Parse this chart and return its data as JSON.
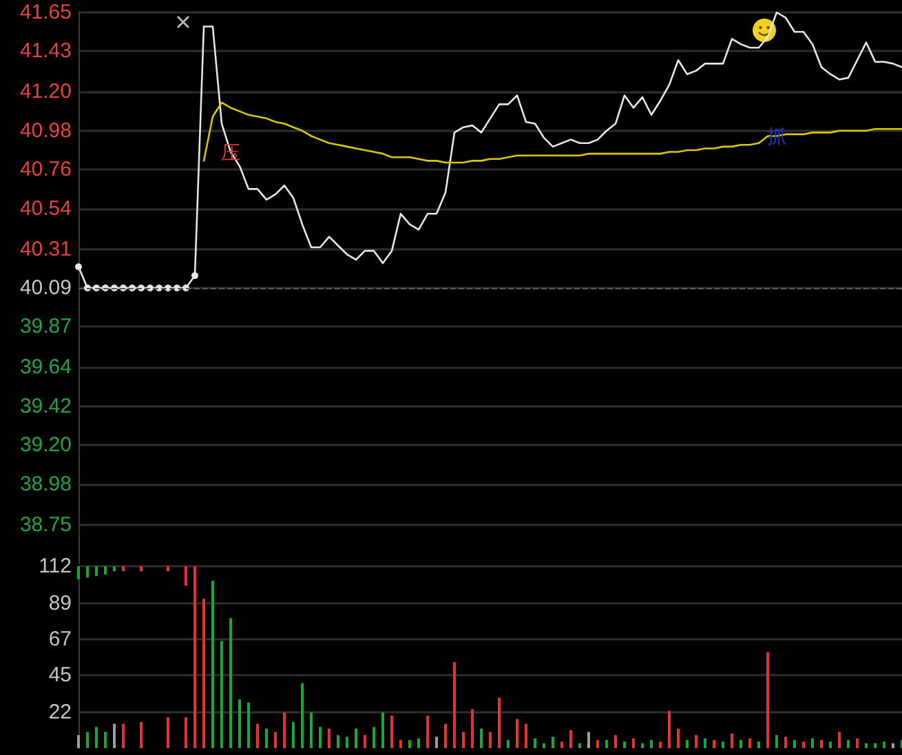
{
  "chart_data": [
    {
      "type": "line",
      "categories": [
        null,
        null,
        null,
        null,
        null,
        null,
        null,
        null,
        null,
        null,
        null,
        null,
        null,
        null,
        null,
        null,
        null,
        null,
        null,
        null,
        null,
        null,
        null,
        null,
        null,
        null,
        null,
        null,
        null,
        null,
        null,
        null,
        null,
        null,
        null,
        null,
        null,
        null,
        null,
        null,
        null,
        null,
        null,
        null,
        null,
        null,
        null,
        null,
        null,
        null,
        null,
        null,
        null,
        null,
        null,
        null,
        null,
        null,
        null,
        null,
        null,
        null,
        null,
        null,
        null,
        null,
        null,
        null,
        null,
        null,
        null,
        null,
        null,
        null,
        null,
        null,
        null,
        null,
        null,
        null,
        null,
        null,
        null,
        null,
        null,
        null,
        null,
        null,
        null,
        null,
        null,
        null,
        null
      ],
      "series": [
        {
          "color": "#e6e6e6",
          "marker": "circle",
          "values": [
            40.21,
            40.09,
            40.09,
            40.09,
            40.09,
            40.09,
            40.09,
            40.09,
            40.09,
            40.09,
            40.09,
            40.09,
            40.09,
            40.16,
            null,
            null,
            null,
            null,
            null,
            null,
            null,
            null,
            null,
            null,
            null,
            null,
            null,
            null,
            null,
            null,
            null,
            null,
            null,
            null,
            null,
            null,
            null,
            null,
            null,
            null,
            null,
            null,
            null,
            null,
            null,
            null,
            null,
            null,
            null,
            null,
            null,
            null,
            null,
            null,
            null,
            null,
            null,
            null,
            null,
            null,
            null,
            null,
            null,
            null,
            null,
            null,
            null,
            null,
            null,
            null,
            null,
            null,
            null,
            null,
            null,
            null,
            null,
            null,
            null,
            null,
            null,
            null,
            null,
            null,
            null,
            null,
            null,
            null,
            null,
            null,
            null,
            null,
            null
          ]
        },
        {
          "color": "#e6e6e6",
          "values": [
            null,
            null,
            null,
            null,
            null,
            null,
            null,
            null,
            null,
            null,
            null,
            null,
            null,
            40.16,
            41.57,
            41.57,
            41.02,
            40.86,
            40.78,
            40.65,
            40.65,
            40.59,
            40.62,
            40.67,
            40.6,
            40.45,
            40.32,
            40.32,
            40.38,
            40.33,
            40.28,
            40.25,
            40.3,
            40.3,
            40.23,
            40.3,
            40.51,
            40.45,
            40.42,
            40.51,
            40.51,
            40.63,
            40.97,
            41.0,
            41.01,
            40.97,
            41.05,
            41.13,
            41.13,
            41.18,
            41.03,
            41.02,
            40.94,
            40.89,
            40.91,
            40.93,
            40.91,
            40.91,
            40.93,
            40.98,
            41.02,
            41.18,
            41.11,
            41.17,
            41.07,
            41.15,
            41.24,
            41.38,
            41.3,
            41.32,
            41.36,
            41.36,
            41.36,
            41.5,
            41.47,
            41.45,
            41.45,
            41.51,
            41.65,
            41.62,
            41.54,
            41.54,
            41.47,
            41.34,
            41.3,
            41.27,
            41.28,
            41.38,
            41.48,
            41.37,
            41.37,
            41.36,
            41.34
          ],
          "value_labels": [
            null,
            null,
            null,
            null,
            null,
            null,
            null,
            null,
            null,
            null,
            null,
            null,
            null,
            null,
            null,
            null,
            null,
            "压",
            null,
            null,
            null,
            null,
            null,
            null,
            null,
            null,
            null,
            null,
            null,
            null,
            null,
            null,
            null,
            null,
            null,
            null,
            null,
            null,
            null,
            null,
            null,
            null,
            null,
            null,
            null,
            null,
            null,
            null,
            null,
            null,
            null,
            null,
            null,
            null,
            null,
            null,
            null,
            null,
            null,
            null,
            null,
            null,
            null,
            null,
            null,
            null,
            null,
            null,
            null,
            null,
            null,
            null,
            null,
            null,
            null,
            null,
            null,
            null,
            null,
            null,
            null,
            null,
            null,
            null,
            null,
            null,
            null,
            null,
            null,
            null,
            null,
            null,
            null
          ]
        },
        {
          "color": "#d9c800",
          "values": [
            null,
            null,
            null,
            null,
            null,
            null,
            null,
            null,
            null,
            null,
            null,
            null,
            null,
            null,
            40.81,
            41.06,
            41.14,
            41.11,
            41.09,
            41.07,
            41.06,
            41.05,
            41.03,
            41.02,
            41.0,
            40.98,
            40.95,
            40.93,
            40.91,
            40.9,
            40.89,
            40.88,
            40.87,
            40.86,
            40.85,
            40.83,
            40.83,
            40.83,
            40.82,
            40.81,
            40.81,
            40.8,
            40.8,
            40.8,
            40.81,
            40.81,
            40.82,
            40.82,
            40.83,
            40.84,
            40.84,
            40.84,
            40.84,
            40.84,
            40.84,
            40.84,
            40.84,
            40.85,
            40.85,
            40.85,
            40.85,
            40.85,
            40.85,
            40.85,
            40.85,
            40.85,
            40.86,
            40.86,
            40.87,
            40.87,
            40.88,
            40.88,
            40.89,
            40.89,
            40.9,
            40.9,
            40.91,
            40.95,
            40.95,
            40.96,
            40.96,
            40.96,
            40.97,
            40.97,
            40.97,
            40.98,
            40.98,
            40.98,
            40.98,
            40.99,
            40.99,
            40.99,
            40.99
          ],
          "value_labels": [
            null,
            null,
            null,
            null,
            null,
            null,
            null,
            null,
            null,
            null,
            null,
            null,
            null,
            null,
            null,
            null,
            null,
            null,
            null,
            null,
            null,
            null,
            null,
            null,
            null,
            null,
            null,
            null,
            null,
            null,
            null,
            null,
            null,
            null,
            null,
            null,
            null,
            null,
            null,
            null,
            null,
            null,
            null,
            null,
            null,
            null,
            null,
            null,
            null,
            null,
            null,
            null,
            null,
            null,
            null,
            null,
            null,
            null,
            null,
            null,
            null,
            null,
            null,
            null,
            null,
            null,
            null,
            null,
            null,
            null,
            null,
            null,
            null,
            null,
            null,
            null,
            null,
            null,
            "抓",
            null,
            null,
            null,
            null,
            null,
            null,
            null,
            null,
            null,
            null,
            null,
            null,
            null,
            null
          ]
        }
      ],
      "ylim": [
        38.53,
        41.65
      ],
      "yticks": [
        38.75,
        38.98,
        {
          "value": 39.2,
          "label": "39.20"
        },
        39.42,
        39.64,
        39.87,
        40.09,
        40.31,
        40.54,
        40.76,
        40.98,
        {
          "value": 41.2,
          "label": "41.20"
        },
        41.43,
        41.65
      ],
      "ref_lines": [
        {
          "axis": "y",
          "value": 40.09,
          "color": "#5c5c5c",
          "line_style": "dashed"
        }
      ],
      "grid": "y",
      "tick_labels": "y"
    },
    {
      "type": "bar",
      "categories": [
        null,
        null,
        null,
        null,
        null,
        null,
        null,
        null,
        null,
        null,
        null,
        null,
        null,
        null,
        null,
        null,
        null,
        null,
        null,
        null,
        null,
        null,
        null,
        null,
        null,
        null,
        null,
        null,
        null,
        null,
        null,
        null,
        null,
        null,
        null,
        null,
        null,
        null,
        null,
        null,
        null,
        null,
        null,
        null,
        null,
        null,
        null,
        null,
        null,
        null,
        null,
        null,
        null,
        null,
        null,
        null,
        null,
        null,
        null,
        null,
        null,
        null,
        null,
        null,
        null,
        null,
        null,
        null,
        null,
        null,
        null,
        null,
        null,
        null,
        null,
        null,
        null,
        null,
        null,
        null,
        null,
        null,
        null,
        null,
        null,
        null,
        null,
        null,
        null,
        null,
        null,
        null,
        null
      ],
      "series": [
        {
          "values": [
            8,
            10,
            13,
            10,
            15,
            15,
            null,
            16,
            null,
            null,
            19,
            null,
            19,
            112,
            92,
            103,
            66,
            80,
            30,
            28,
            15,
            12,
            10,
            22,
            16,
            40,
            22,
            13,
            12,
            8,
            7,
            12,
            8,
            13,
            22,
            20,
            5,
            5,
            6,
            20,
            7,
            15,
            53,
            10,
            24,
            12,
            10,
            31,
            5,
            18,
            15,
            6,
            3,
            7,
            4,
            11,
            3,
            10,
            5,
            5,
            8,
            4,
            6,
            3,
            5,
            4,
            23,
            12,
            5,
            8,
            6,
            5,
            4,
            9,
            5,
            6,
            4,
            59,
            8,
            7,
            5,
            4,
            6,
            5,
            4,
            10,
            5,
            6,
            3,
            3,
            4,
            3,
            5
          ],
          "colors": [
            "#9c9c9c",
            "#17a83a",
            "#17a83a",
            "#17a83a",
            "#9c9c9c",
            "#e8302c",
            null,
            "#e8302c",
            null,
            null,
            "#e8302c",
            null,
            "#e8302c",
            "#e8302c",
            "#e8302c",
            "#17a83a",
            "#17a83a",
            "#17a83a",
            "#17a83a",
            "#17a83a",
            "#e8302c",
            "#17a83a",
            "#e8302c",
            "#e8302c",
            "#17a83a",
            "#17a83a",
            "#17a83a",
            "#17a83a",
            "#e8302c",
            "#17a83a",
            "#17a83a",
            "#17a83a",
            "#e8302c",
            "#17a83a",
            "#17a83a",
            "#e8302c",
            "#e8302c",
            "#17a83a",
            "#17a83a",
            "#e8302c",
            "#9c9c9c",
            "#e8302c",
            "#e8302c",
            "#e8302c",
            "#e8302c",
            "#17a83a",
            "#e8302c",
            "#e8302c",
            "#17a83a",
            "#e8302c",
            "#e8302c",
            "#17a83a",
            "#17a83a",
            "#17a83a",
            "#e8302c",
            "#e8302c",
            "#17a83a",
            "#9c9c9c",
            "#e8302c",
            "#17a83a",
            "#e8302c",
            "#17a83a",
            "#e8302c",
            "#17a83a",
            "#17a83a",
            "#e8302c",
            "#e8302c",
            "#e8302c",
            "#17a83a",
            "#e8302c",
            "#17a83a",
            "#e8302c",
            "#17a83a",
            "#e8302c",
            "#17a83a",
            "#e8302c",
            "#17a83a",
            "#e8302c",
            "#17a83a",
            "#e8302c",
            "#17a83a",
            "#e8302c",
            "#17a83a",
            "#e8302c",
            "#17a83a",
            "#e8302c",
            "#17a83a",
            "#e8302c",
            "#17a83a",
            "#17a83a",
            "#17a83a",
            "#9c9c9c",
            "#17a83a"
          ]
        },
        {
          "values": [
            8,
            7,
            6,
            5,
            3,
            3,
            null,
            3,
            null,
            null,
            3,
            null,
            12,
            null,
            null,
            null,
            null,
            null,
            null,
            null,
            null,
            null,
            null,
            null,
            null,
            null,
            null,
            null,
            null,
            null,
            null,
            null,
            null,
            null,
            null,
            null,
            null,
            null,
            null,
            null,
            null,
            null,
            null,
            null,
            null,
            null,
            null,
            null,
            null,
            null,
            null,
            null,
            null,
            null,
            null,
            null,
            null,
            null,
            null,
            null,
            null,
            null,
            null,
            null,
            null,
            null,
            null,
            null,
            null,
            null,
            null,
            null,
            null,
            null,
            null,
            null,
            null,
            null,
            null,
            null,
            null,
            null,
            null,
            null,
            null,
            null,
            null,
            null,
            null,
            null,
            null,
            null,
            null
          ],
          "base": [
            104,
            105,
            106,
            107,
            109,
            109,
            null,
            109,
            null,
            null,
            109,
            null,
            100,
            null,
            null,
            null,
            null,
            null,
            null,
            null,
            null,
            null,
            null,
            null,
            null,
            null,
            null,
            null,
            null,
            null,
            null,
            null,
            null,
            null,
            null,
            null,
            null,
            null,
            null,
            null,
            null,
            null,
            null,
            null,
            null,
            null,
            null,
            null,
            null,
            null,
            null,
            null,
            null,
            null,
            null,
            null,
            null,
            null,
            null,
            null,
            null,
            null,
            null,
            null,
            null,
            null,
            null,
            null,
            null,
            null,
            null,
            null,
            null,
            null,
            null,
            null,
            null,
            null,
            null,
            null,
            null,
            null,
            null,
            null,
            null,
            null,
            null,
            null,
            null,
            null,
            null,
            null,
            null
          ],
          "colors": [
            "#17a83a",
            "#17a83a",
            "#17a83a",
            "#17a83a",
            "#17a83a",
            "#e8302c",
            null,
            "#e8302c",
            null,
            null,
            "#e8302c",
            null,
            "#e8302c",
            null,
            null,
            null,
            null,
            null,
            null,
            null,
            null,
            null,
            null,
            null,
            null,
            null,
            null,
            null,
            null,
            null,
            null,
            null,
            null,
            null,
            null,
            null,
            null,
            null,
            null,
            null,
            null,
            null,
            null,
            null,
            null,
            null,
            null,
            null,
            null,
            null,
            null,
            null,
            null,
            null,
            null,
            null,
            null,
            null,
            null,
            null,
            null,
            null,
            null,
            null,
            null,
            null,
            null,
            null,
            null,
            null,
            null,
            null,
            null,
            null,
            null,
            null,
            null,
            null,
            null,
            null,
            null,
            null,
            null,
            null,
            null,
            null,
            null,
            null,
            null,
            null,
            null,
            null,
            null
          ]
        }
      ],
      "ylim": [
        0,
        112
      ],
      "yticks": [
        22,
        45,
        67,
        89,
        112
      ],
      "grid": "y",
      "tick_labels": "y"
    }
  ]
}
